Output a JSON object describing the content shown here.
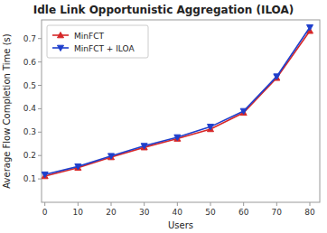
{
  "chart_data": {
    "type": "line",
    "title": "Idle Link Opportunistic Aggregation (ILOA)",
    "xlabel": "Users",
    "ylabel": "Average Flow Completion Time (s)",
    "x": [
      0,
      10,
      20,
      30,
      40,
      50,
      60,
      70,
      80
    ],
    "series": [
      {
        "name": "MinFCT",
        "color": "#d62728",
        "marker": "triangle-up",
        "values": [
          0.112,
          0.148,
          0.193,
          0.235,
          0.272,
          0.313,
          0.383,
          0.532,
          0.733
        ]
      },
      {
        "name": "MinFCT + ILOA",
        "color": "#1f3fcc",
        "marker": "triangle-down",
        "values": [
          0.119,
          0.153,
          0.198,
          0.241,
          0.278,
          0.323,
          0.39,
          0.538,
          0.748
        ]
      }
    ],
    "xlim": [
      -1,
      83
    ],
    "ylim": [
      0.0,
      0.78
    ],
    "xticks": [
      0,
      10,
      20,
      30,
      40,
      50,
      60,
      70,
      80
    ],
    "yticks": [
      0.1,
      0.2,
      0.3,
      0.4,
      0.5,
      0.6,
      0.7
    ],
    "legend": "upper-left",
    "grid": false
  }
}
